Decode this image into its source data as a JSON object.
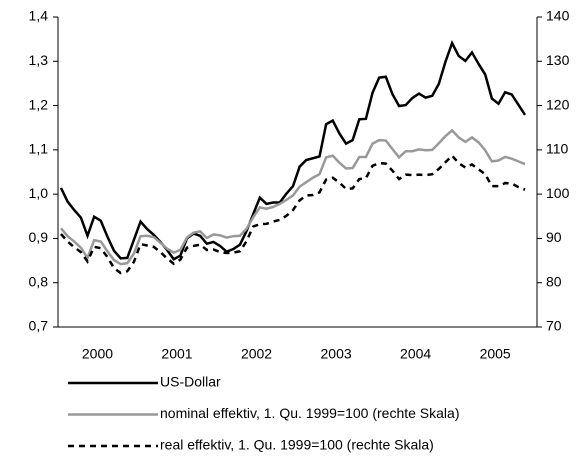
{
  "chart_data": {
    "type": "line",
    "categories": [
      null,
      null,
      null,
      null,
      null,
      "2000",
      null,
      null,
      null,
      null,
      null,
      null,
      null,
      null,
      null,
      null,
      null,
      "2001",
      null,
      null,
      null,
      null,
      null,
      null,
      null,
      null,
      null,
      null,
      null,
      "2002",
      null,
      null,
      null,
      null,
      null,
      null,
      null,
      null,
      null,
      null,
      null,
      "2003",
      null,
      null,
      null,
      null,
      null,
      null,
      null,
      null,
      null,
      null,
      null,
      "2004",
      null,
      null,
      null,
      null,
      null,
      null,
      null,
      null,
      null,
      null,
      null,
      "2005",
      null,
      null,
      null,
      null,
      null
    ],
    "ylim": [
      0.7,
      1.4
    ],
    "yticks": [
      {
        "value": 0.7,
        "label": "0,7"
      },
      {
        "value": 0.8,
        "label": "0,8"
      },
      {
        "value": 0.9,
        "label": "0,9"
      },
      {
        "value": 1.0,
        "label": "1,0"
      },
      {
        "value": 1.1,
        "label": "1,1"
      },
      {
        "value": 1.2,
        "label": "1,2"
      },
      {
        "value": 1.3,
        "label": "1,3"
      },
      {
        "value": 1.4,
        "label": "1,4"
      }
    ],
    "y2lim": [
      70,
      140
    ],
    "y2ticks": [
      70,
      80,
      90,
      100,
      110,
      120,
      130,
      140
    ],
    "grid": false,
    "legend": "bottom",
    "series": [
      {
        "name": "US-Dollar",
        "color": "#000000",
        "line_style": "solid",
        "values": [
          1.014,
          0.983,
          0.964,
          0.947,
          0.906,
          0.949,
          0.94,
          0.904,
          0.872,
          0.855,
          0.856,
          0.897,
          0.938,
          0.921,
          0.908,
          0.892,
          0.874,
          0.853,
          0.861,
          0.9,
          0.911,
          0.906,
          0.888,
          0.892,
          0.883,
          0.87,
          0.876,
          0.886,
          0.917,
          0.955,
          0.992,
          0.978,
          0.981,
          0.981,
          1.001,
          1.018,
          1.062,
          1.077,
          1.081,
          1.085,
          1.158,
          1.166,
          1.137,
          1.114,
          1.122,
          1.169,
          1.17,
          1.229,
          1.263,
          1.265,
          1.226,
          1.199,
          1.201,
          1.217,
          1.227,
          1.218,
          1.222,
          1.249,
          1.299,
          1.341,
          1.312,
          1.301,
          1.32,
          1.294,
          1.27,
          1.216,
          1.204,
          1.23,
          1.225,
          1.202,
          1.179
        ]
      },
      {
        "name": "nominal effektiv, 1. Qu. 1999=100 (rechte Skala)",
        "color": "#999999",
        "line_style": "solid",
        "axis": "y2",
        "values": [
          92.3,
          90.5,
          89.3,
          87.9,
          85.6,
          89.6,
          89.3,
          87.1,
          85.1,
          84.2,
          84.4,
          86.6,
          90.5,
          90.6,
          90.3,
          89.0,
          87.7,
          86.8,
          87.4,
          90.2,
          91.3,
          91.6,
          90.1,
          90.9,
          90.7,
          90.2,
          90.5,
          90.6,
          92.2,
          94.8,
          97.0,
          96.7,
          97.1,
          97.8,
          98.7,
          99.7,
          101.7,
          102.7,
          103.7,
          104.5,
          108.3,
          108.7,
          107.1,
          105.8,
          105.9,
          108.4,
          108.4,
          111.4,
          112.2,
          112.1,
          110.2,
          108.3,
          109.7,
          109.7,
          110.1,
          109.9,
          110.0,
          111.5,
          113.1,
          114.4,
          112.8,
          111.8,
          112.8,
          111.7,
          109.9,
          107.4,
          107.6,
          108.4,
          108.0,
          107.4,
          106.8
        ]
      },
      {
        "name": "real effektiv, 1. Qu. 1999=100 (rechte Skala)",
        "color": "#000000",
        "line_style": "dashed",
        "axis": "y2",
        "values": [
          91.0,
          89.3,
          88.0,
          86.9,
          84.8,
          88.1,
          87.8,
          85.8,
          83.3,
          82.2,
          82.6,
          84.7,
          88.7,
          88.4,
          88.1,
          86.9,
          85.5,
          84.3,
          85.2,
          87.9,
          88.3,
          88.6,
          87.4,
          87.5,
          86.9,
          86.7,
          86.8,
          87.1,
          89.4,
          92.7,
          93.2,
          93.3,
          93.8,
          94.2,
          95.1,
          96.4,
          98.6,
          99.7,
          99.8,
          100.4,
          103.3,
          103.7,
          102.6,
          101.2,
          101.3,
          103.4,
          103.6,
          106.4,
          107.0,
          106.9,
          105.3,
          103.4,
          104.4,
          104.3,
          104.4,
          104.3,
          104.5,
          105.7,
          107.2,
          108.7,
          107.0,
          106.0,
          106.7,
          105.6,
          104.5,
          101.8,
          101.8,
          102.5,
          102.4,
          101.6,
          101.0
        ]
      }
    ]
  }
}
